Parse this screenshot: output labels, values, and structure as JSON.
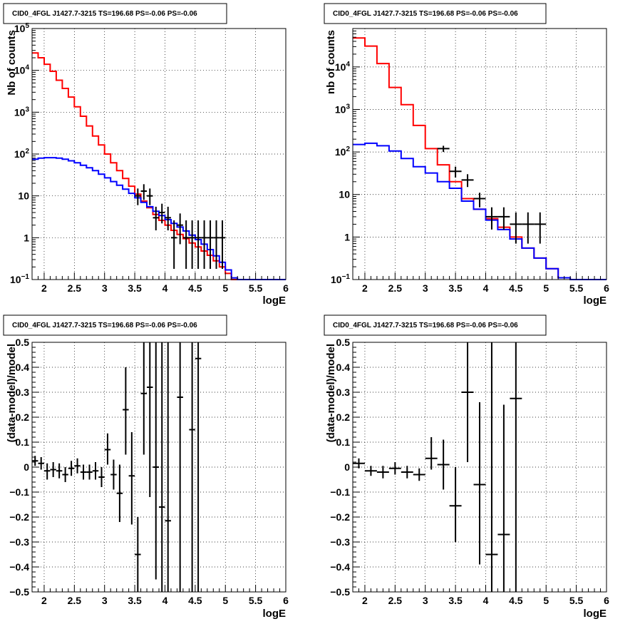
{
  "chart_data": [
    {
      "type": "histogram",
      "title": "CID0_4FGL J1427.7-3215 TS=196.68 PS=-0.06 PS=-0.06",
      "xlabel": "logE",
      "ylabel": "Nb of counts",
      "xlim": [
        1.8,
        6
      ],
      "ylim": [
        0.1,
        100000
      ],
      "yscale": "log",
      "grid": true,
      "xticks": [
        "2",
        "2.5",
        "3",
        "3.5",
        "4",
        "4.5",
        "5",
        "5.5",
        "6"
      ],
      "yticks": [
        "10⁻¹",
        "1",
        "10",
        "10²",
        "10³",
        "10⁴",
        "10⁵"
      ],
      "bin_edges": [
        1.8,
        1.9,
        2.0,
        2.1,
        2.2,
        2.3,
        2.4,
        2.5,
        2.6,
        2.7,
        2.8,
        2.9,
        3.0,
        3.1,
        3.2,
        3.3,
        3.4,
        3.5,
        3.6,
        3.7,
        3.8,
        3.9,
        4.0,
        4.1,
        4.2,
        4.3,
        4.4,
        4.5,
        4.6,
        4.7,
        4.8,
        4.9,
        5.0,
        5.1,
        5.2,
        5.3,
        5.4,
        5.5,
        5.6,
        5.7,
        5.8,
        5.9,
        6.0
      ],
      "series": [
        {
          "name": "",
          "color": "#ff0000",
          "style": "step",
          "values": [
            26000,
            20000,
            14000,
            9500,
            5800,
            3700,
            2300,
            1350,
            800,
            470,
            270,
            165,
            100,
            62,
            40,
            26,
            17,
            11,
            7.5,
            5.2,
            3.6,
            2.6,
            2.0,
            1.5,
            1.2,
            0.95,
            0.75,
            0.6,
            0.48,
            0.38,
            0.28,
            0.2,
            0.14,
            0.1,
            0.1,
            0.1,
            0.1,
            0.1,
            0.1,
            0.1,
            0.1,
            0.1
          ]
        },
        {
          "name": "",
          "color": "#0000ff",
          "style": "step",
          "values": [
            75,
            80,
            82,
            82,
            80,
            75,
            69,
            62,
            54,
            47,
            40,
            33,
            27,
            22,
            18,
            14.5,
            11.5,
            9,
            7,
            5.5,
            4.3,
            3.4,
            2.7,
            2.2,
            1.8,
            1.45,
            1.15,
            0.9,
            0.7,
            0.52,
            0.37,
            0.26,
            0.17,
            0.11,
            0.1,
            0.1,
            0.1,
            0.1,
            0.1,
            0.1,
            0.1,
            0.1
          ]
        },
        {
          "name": "",
          "color": "#000000",
          "style": "errorbar",
          "x": [
            3.55,
            3.65,
            3.75,
            3.85,
            3.95,
            4.05,
            4.15,
            4.25,
            4.35,
            4.45,
            4.55,
            4.65,
            4.75,
            4.85,
            4.95
          ],
          "values": [
            10,
            13,
            10,
            3,
            4,
            3,
            1,
            2,
            1,
            1,
            1,
            1,
            1,
            1,
            1
          ],
          "low": [
            6,
            8,
            6,
            1.5,
            2.2,
            1.5,
            0.18,
            0.7,
            0.18,
            0.18,
            0.18,
            0.18,
            0.18,
            0.18,
            0.18
          ],
          "high": [
            15,
            19,
            15,
            5.5,
            6.5,
            5.5,
            2.6,
            3.8,
            2.6,
            2.6,
            2.6,
            2.6,
            2.6,
            2.6,
            2.6
          ]
        }
      ]
    },
    {
      "type": "histogram",
      "title": "CID0_4FGL J1427.7-3215 TS=196.68 PS=-0.06 PS=-0.06",
      "xlabel": "logE",
      "ylabel": "nb of counts",
      "xlim": [
        1.8,
        6
      ],
      "ylim": [
        0.1,
        80000
      ],
      "yscale": "log",
      "grid": true,
      "xticks": [
        "2",
        "2.5",
        "3",
        "3.5",
        "4",
        "4.5",
        "5",
        "5.5",
        "6"
      ],
      "yticks": [
        "10⁻¹",
        "1",
        "10",
        "10²",
        "10³",
        "10⁴"
      ],
      "bin_edges": [
        1.8,
        2.0,
        2.2,
        2.4,
        2.6,
        2.8,
        3.0,
        3.2,
        3.4,
        3.6,
        3.8,
        4.0,
        4.2,
        4.4,
        4.6,
        4.8,
        5.0,
        5.2,
        5.4,
        5.6,
        5.8,
        6.0
      ],
      "series": [
        {
          "name": "",
          "color": "#ff0000",
          "style": "step",
          "values": [
            48000,
            31000,
            12000,
            3300,
            1300,
            420,
            120,
            50,
            20,
            8,
            4.5,
            2.7,
            1.7,
            1.0,
            0.55,
            0.32,
            0.18,
            0.11,
            0.1,
            0.1,
            0.1
          ]
        },
        {
          "name": "",
          "color": "#0000ff",
          "style": "step",
          "values": [
            150,
            160,
            140,
            105,
            70,
            45,
            32,
            20,
            14,
            7,
            4.5,
            2.5,
            1.5,
            0.9,
            0.55,
            0.32,
            0.18,
            0.11,
            0.1,
            0.1,
            0.1
          ]
        },
        {
          "name": "",
          "color": "#000000",
          "style": "errorbar",
          "x": [
            3.3,
            3.5,
            3.7,
            3.9,
            4.1,
            4.3,
            4.5,
            4.7,
            4.9
          ],
          "values": [
            120,
            35,
            22,
            8,
            3,
            3,
            2,
            2,
            2
          ],
          "low": [
            100,
            25,
            15,
            5,
            1.5,
            1.5,
            0.7,
            0.7,
            0.7
          ],
          "high": [
            140,
            45,
            30,
            11,
            5,
            5,
            3.8,
            3.8,
            3.8
          ]
        }
      ]
    },
    {
      "type": "scatter",
      "title": "CID0_4FGL J1427.7-3215 TS=196.68 PS=-0.06 PS=-0.06",
      "xlabel": "logE",
      "ylabel": "(data-model)/model",
      "xlim": [
        1.8,
        6
      ],
      "ylim": [
        -0.5,
        0.5
      ],
      "grid": true,
      "xticks": [
        "2",
        "2.5",
        "3",
        "3.5",
        "4",
        "4.5",
        "5",
        "5.5",
        "6"
      ],
      "yticks": [
        "−0.5",
        "−0.4",
        "−0.3",
        "−0.2",
        "−0.1",
        "0",
        "0.1",
        "0.2",
        "0.3",
        "0.4",
        "0.5"
      ],
      "bin_width": 0.1,
      "series": [
        {
          "name": "",
          "color": "#000000",
          "style": "errorbar",
          "x": [
            1.85,
            1.95,
            2.05,
            2.15,
            2.25,
            2.35,
            2.45,
            2.55,
            2.65,
            2.75,
            2.85,
            2.95,
            3.05,
            3.15,
            3.25,
            3.35,
            3.45,
            3.55,
            3.65,
            3.75,
            3.85,
            3.95,
            4.05,
            4.25,
            4.45,
            4.55
          ],
          "values": [
            0.025,
            0.015,
            -0.015,
            -0.01,
            -0.015,
            -0.03,
            -0.005,
            0.005,
            -0.02,
            -0.02,
            -0.015,
            -0.04,
            0.07,
            -0.03,
            -0.105,
            0.23,
            -0.035,
            -0.35,
            0.295,
            0.32,
            0.0,
            -0.16,
            -0.215,
            0.28,
            0.15,
            0.435
          ],
          "low": [
            0.005,
            -0.01,
            -0.05,
            -0.04,
            -0.045,
            -0.06,
            -0.035,
            -0.025,
            -0.05,
            -0.05,
            -0.05,
            -0.08,
            0.01,
            -0.09,
            -0.22,
            0.05,
            -0.23,
            -0.5,
            0.05,
            -0.12,
            -0.45,
            -0.5,
            -0.5,
            -0.5,
            -0.5,
            -0.5
          ],
          "high": [
            0.045,
            0.04,
            0.015,
            0.02,
            0.015,
            0.0,
            0.025,
            0.035,
            0.01,
            0.01,
            0.02,
            0.0,
            0.135,
            0.03,
            0.01,
            0.4,
            0.14,
            -0.2,
            0.5,
            0.5,
            0.5,
            0.5,
            0.5,
            0.5,
            0.5,
            0.5
          ]
        }
      ]
    },
    {
      "type": "scatter",
      "title": "CID0_4FGL J1427.7-3215 TS=196.68 PS=-0.06 PS=-0.06",
      "xlabel": "logE",
      "ylabel": "(data-model)/model",
      "xlim": [
        1.8,
        6
      ],
      "ylim": [
        -0.5,
        0.5
      ],
      "grid": true,
      "xticks": [
        "2",
        "2.5",
        "3",
        "3.5",
        "4",
        "4.5",
        "5",
        "5.5",
        "6"
      ],
      "yticks": [
        "−0.5",
        "−0.4",
        "−0.3",
        "−0.2",
        "−0.1",
        "0",
        "0.1",
        "0.2",
        "0.3",
        "0.4",
        "0.5"
      ],
      "bin_width": 0.2,
      "series": [
        {
          "name": "",
          "color": "#000000",
          "style": "errorbar",
          "x": [
            1.9,
            2.1,
            2.3,
            2.5,
            2.7,
            2.9,
            3.1,
            3.3,
            3.5,
            3.7,
            3.9,
            4.1,
            4.3,
            4.5
          ],
          "values": [
            0.015,
            -0.015,
            -0.02,
            -0.005,
            -0.02,
            -0.03,
            0.035,
            0.01,
            -0.155,
            0.3,
            -0.07,
            -0.35,
            -0.27,
            0.275
          ],
          "low": [
            -0.005,
            -0.035,
            -0.045,
            -0.03,
            -0.045,
            -0.055,
            -0.01,
            -0.09,
            -0.3,
            0.02,
            -0.39,
            -0.5,
            -0.5,
            -0.5
          ],
          "high": [
            0.035,
            0.005,
            0.005,
            0.02,
            0.005,
            -0.005,
            0.12,
            0.11,
            0.0,
            0.5,
            0.26,
            0.5,
            0.25,
            0.5
          ]
        }
      ]
    }
  ]
}
